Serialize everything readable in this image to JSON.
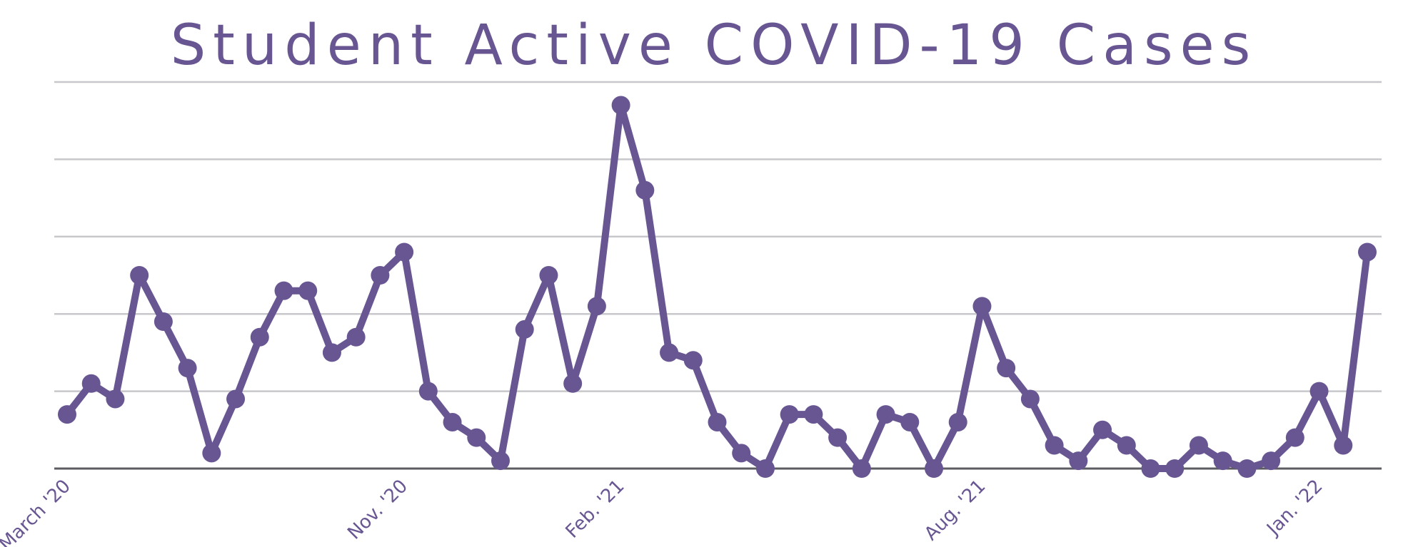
{
  "chart_data": {
    "type": "line",
    "title": "Student Active COVID-19 Cases",
    "xlabel": "",
    "ylabel": "",
    "grid": true,
    "legend": "none",
    "x_ticks": [
      {
        "label": "March '20",
        "index": 0
      },
      {
        "label": "Nov. '20",
        "index": 14
      },
      {
        "label": "Feb. '21",
        "index": 23
      },
      {
        "label": "Aug. '21",
        "index": 38
      },
      {
        "label": "Jan. '22",
        "index": 52
      }
    ],
    "ylim": [
      0,
      25
    ],
    "y_gridlines": [
      0,
      5,
      10,
      15,
      20,
      25
    ],
    "series": [
      {
        "color": "#685692",
        "values": [
          3.5,
          5.5,
          4.5,
          12.5,
          9.5,
          6.5,
          1,
          4.5,
          8.5,
          11.5,
          11.5,
          7.5,
          8.5,
          12.5,
          14,
          5,
          3,
          2,
          0.5,
          9,
          12.5,
          5.5,
          10.5,
          23.5,
          18,
          7.5,
          7,
          3,
          1,
          0,
          3.5,
          3.5,
          2,
          0,
          3.5,
          3,
          0,
          3,
          10.5,
          6.5,
          4.5,
          1.5,
          0.5,
          2.5,
          1.5,
          0,
          0,
          1.5,
          0.5,
          0,
          0.5,
          2,
          5,
          1.5,
          14
        ]
      }
    ]
  }
}
